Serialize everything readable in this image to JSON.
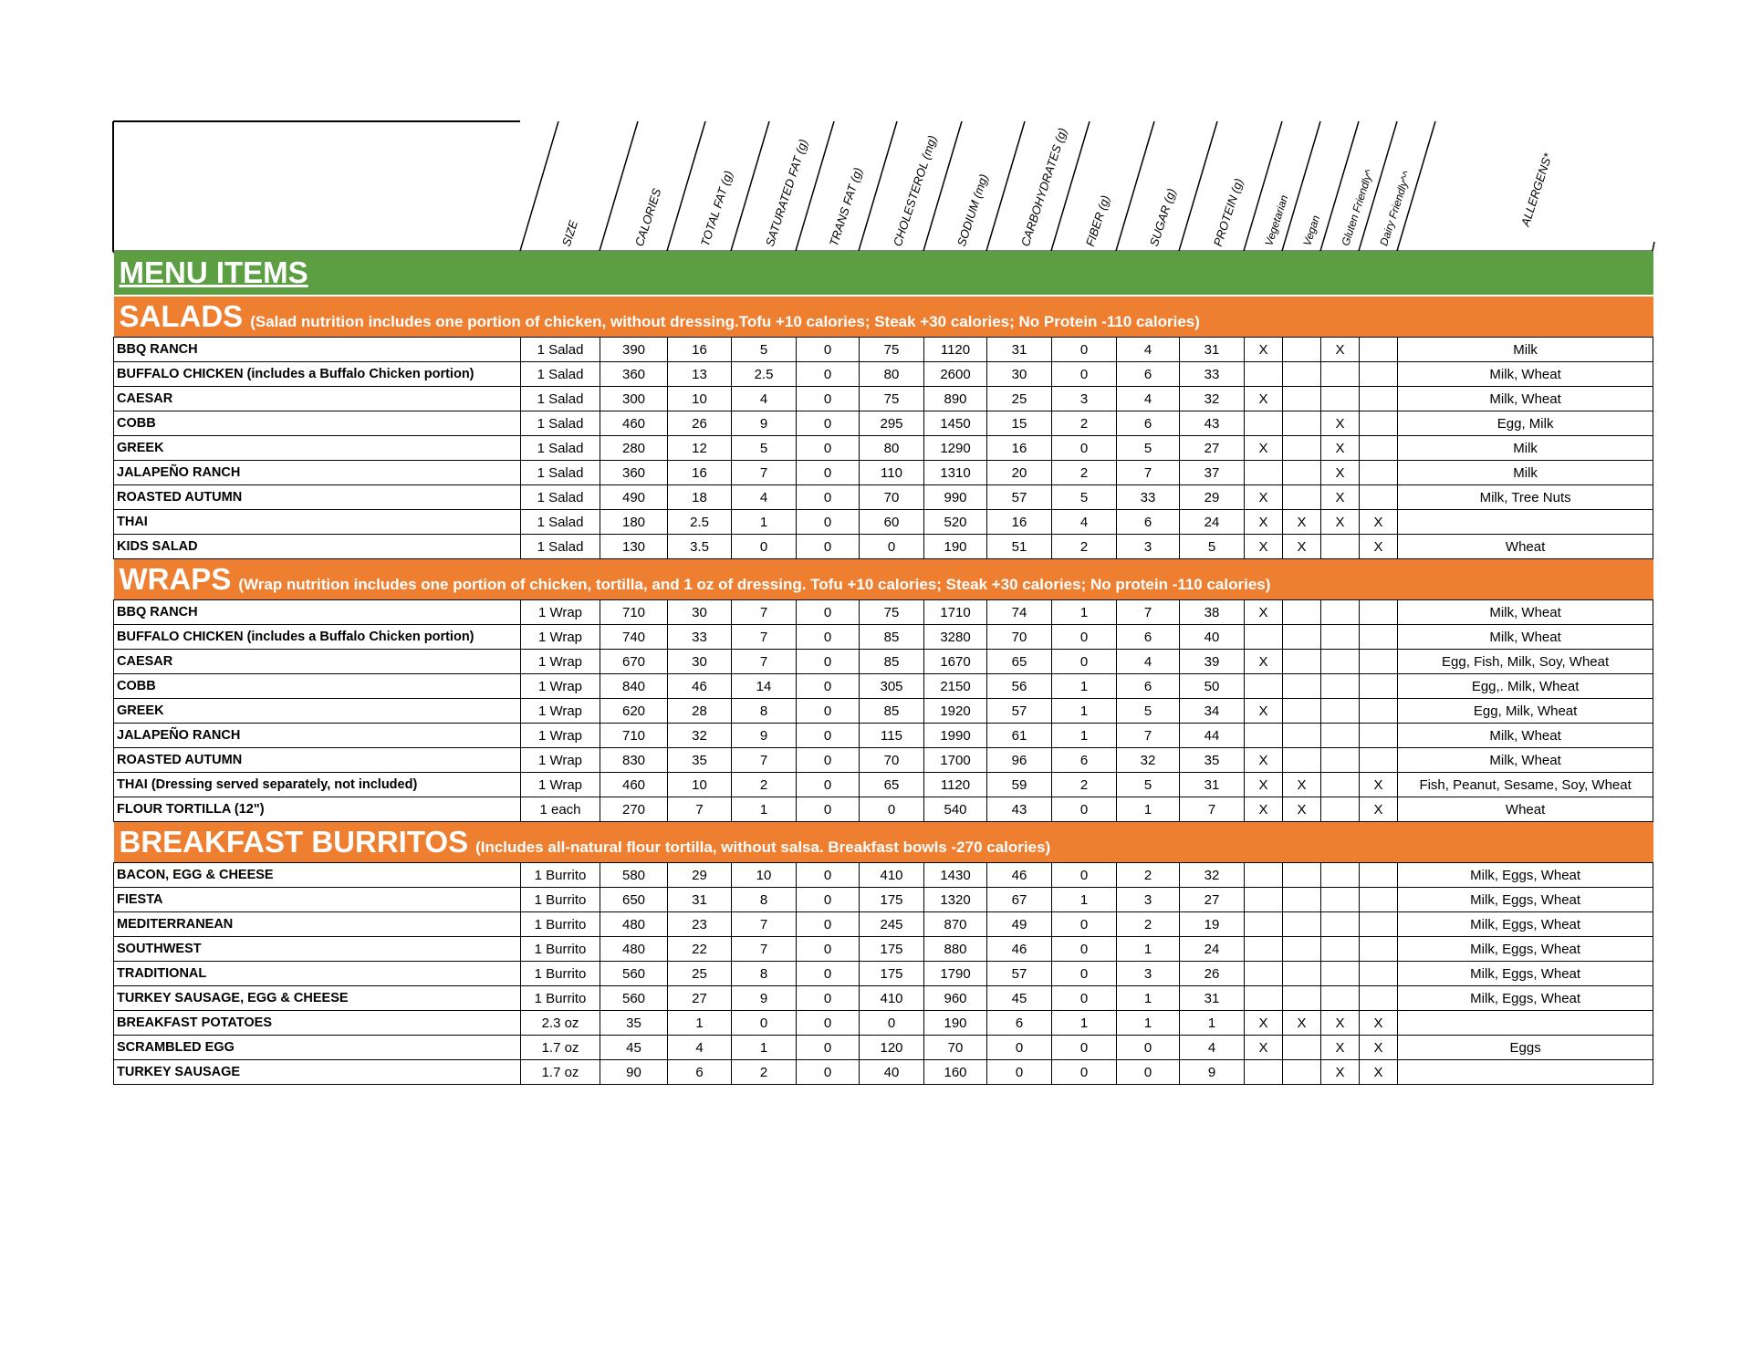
{
  "header": {
    "columns": [
      "SIZE",
      "CALORIES",
      "TOTAL FAT (g)",
      "SATURATED FAT (g)",
      "TRANS FAT (g)",
      "CHOLESTEROL (mg)",
      "SODIUM (mg)",
      "CARBOHYDRATES (g)",
      "FIBER (g)",
      "SUGAR (g)",
      "PROTEIN (g)",
      "Vegetarian",
      "Vegan",
      "Gluten Friendly^",
      "Dairy Friendly^^",
      "ALLERGENS*"
    ]
  },
  "menu_title": "MENU ITEMS",
  "colors": {
    "green": "#5c9e42",
    "orange": "#ee7f31"
  },
  "sections": [
    {
      "title": "SALADS",
      "note": "(Salad nutrition includes one portion of chicken, without dressing.Tofu +10 calories; Steak +30 calories; No Protein -110 calories)",
      "rows": [
        [
          "BBQ RANCH",
          "1 Salad",
          "390",
          "16",
          "5",
          "0",
          "75",
          "1120",
          "31",
          "0",
          "4",
          "31",
          "X",
          "",
          "X",
          "",
          "Milk"
        ],
        [
          "BUFFALO CHICKEN (includes a Buffalo Chicken portion)",
          "1 Salad",
          "360",
          "13",
          "2.5",
          "0",
          "80",
          "2600",
          "30",
          "0",
          "6",
          "33",
          "",
          "",
          "",
          "",
          "Milk, Wheat"
        ],
        [
          "CAESAR",
          "1 Salad",
          "300",
          "10",
          "4",
          "0",
          "75",
          "890",
          "25",
          "3",
          "4",
          "32",
          "X",
          "",
          "",
          "",
          "Milk, Wheat"
        ],
        [
          "COBB",
          "1 Salad",
          "460",
          "26",
          "9",
          "0",
          "295",
          "1450",
          "15",
          "2",
          "6",
          "43",
          "",
          "",
          "X",
          "",
          "Egg, Milk"
        ],
        [
          "GREEK",
          "1 Salad",
          "280",
          "12",
          "5",
          "0",
          "80",
          "1290",
          "16",
          "0",
          "5",
          "27",
          "X",
          "",
          "X",
          "",
          "Milk"
        ],
        [
          "JALAPEÑO RANCH",
          "1 Salad",
          "360",
          "16",
          "7",
          "0",
          "110",
          "1310",
          "20",
          "2",
          "7",
          "37",
          "",
          "",
          "X",
          "",
          "Milk"
        ],
        [
          "ROASTED AUTUMN",
          "1 Salad",
          "490",
          "18",
          "4",
          "0",
          "70",
          "990",
          "57",
          "5",
          "33",
          "29",
          "X",
          "",
          "X",
          "",
          "Milk, Tree Nuts"
        ],
        [
          "THAI",
          "1 Salad",
          "180",
          "2.5",
          "1",
          "0",
          "60",
          "520",
          "16",
          "4",
          "6",
          "24",
          "X",
          "X",
          "X",
          "X",
          ""
        ],
        [
          "KIDS SALAD",
          "1 Salad",
          "130",
          "3.5",
          "0",
          "0",
          "0",
          "190",
          "51",
          "2",
          "3",
          "5",
          "X",
          "X",
          "",
          "X",
          "Wheat"
        ]
      ]
    },
    {
      "title": "WRAPS",
      "note": "(Wrap nutrition includes one portion of chicken, tortilla, and 1 oz of dressing. Tofu +10 calories; Steak +30 calories; No protein -110 calories)",
      "rows": [
        [
          "BBQ RANCH",
          "1 Wrap",
          "710",
          "30",
          "7",
          "0",
          "75",
          "1710",
          "74",
          "1",
          "7",
          "38",
          "X",
          "",
          "",
          "",
          "Milk, Wheat"
        ],
        [
          "BUFFALO CHICKEN (includes a Buffalo Chicken portion)",
          "1 Wrap",
          "740",
          "33",
          "7",
          "0",
          "85",
          "3280",
          "70",
          "0",
          "6",
          "40",
          "",
          "",
          "",
          "",
          "Milk, Wheat"
        ],
        [
          "CAESAR",
          "1 Wrap",
          "670",
          "30",
          "7",
          "0",
          "85",
          "1670",
          "65",
          "0",
          "4",
          "39",
          "X",
          "",
          "",
          "",
          "Egg, Fish, Milk, Soy, Wheat"
        ],
        [
          "COBB",
          "1 Wrap",
          "840",
          "46",
          "14",
          "0",
          "305",
          "2150",
          "56",
          "1",
          "6",
          "50",
          "",
          "",
          "",
          "",
          "Egg,. Milk, Wheat"
        ],
        [
          "GREEK",
          "1 Wrap",
          "620",
          "28",
          "8",
          "0",
          "85",
          "1920",
          "57",
          "1",
          "5",
          "34",
          "X",
          "",
          "",
          "",
          "Egg, Milk, Wheat"
        ],
        [
          "JALAPEÑO RANCH",
          "1 Wrap",
          "710",
          "32",
          "9",
          "0",
          "115",
          "1990",
          "61",
          "1",
          "7",
          "44",
          "",
          "",
          "",
          "",
          "Milk, Wheat"
        ],
        [
          "ROASTED AUTUMN",
          "1 Wrap",
          "830",
          "35",
          "7",
          "0",
          "70",
          "1700",
          "96",
          "6",
          "32",
          "35",
          "X",
          "",
          "",
          "",
          "Milk, Wheat"
        ],
        [
          "THAI (Dressing served separately, not included)",
          "1 Wrap",
          "460",
          "10",
          "2",
          "0",
          "65",
          "1120",
          "59",
          "2",
          "5",
          "31",
          "X",
          "X",
          "",
          "X",
          "Fish, Peanut, Sesame, Soy, Wheat"
        ],
        [
          "FLOUR TORTILLA (12\")",
          "1 each",
          "270",
          "7",
          "1",
          "0",
          "0",
          "540",
          "43",
          "0",
          "1",
          "7",
          "X",
          "X",
          "",
          "X",
          "Wheat"
        ]
      ]
    },
    {
      "title": "BREAKFAST BURRITOS",
      "note": "(Includes all-natural flour tortilla, without salsa. Breakfast bowls -270 calories)",
      "rows": [
        [
          "BACON, EGG & CHEESE",
          "1 Burrito",
          "580",
          "29",
          "10",
          "0",
          "410",
          "1430",
          "46",
          "0",
          "2",
          "32",
          "",
          "",
          "",
          "",
          "Milk, Eggs, Wheat"
        ],
        [
          "FIESTA",
          "1 Burrito",
          "650",
          "31",
          "8",
          "0",
          "175",
          "1320",
          "67",
          "1",
          "3",
          "27",
          "",
          "",
          "",
          "",
          "Milk, Eggs, Wheat"
        ],
        [
          "MEDITERRANEAN",
          "1 Burrito",
          "480",
          "23",
          "7",
          "0",
          "245",
          "870",
          "49",
          "0",
          "2",
          "19",
          "",
          "",
          "",
          "",
          "Milk, Eggs, Wheat"
        ],
        [
          "SOUTHWEST",
          "1 Burrito",
          "480",
          "22",
          "7",
          "0",
          "175",
          "880",
          "46",
          "0",
          "1",
          "24",
          "",
          "",
          "",
          "",
          "Milk, Eggs, Wheat"
        ],
        [
          "TRADITIONAL",
          "1 Burrito",
          "560",
          "25",
          "8",
          "0",
          "175",
          "1790",
          "57",
          "0",
          "3",
          "26",
          "",
          "",
          "",
          "",
          "Milk, Eggs, Wheat"
        ],
        [
          "TURKEY SAUSAGE, EGG & CHEESE",
          "1 Burrito",
          "560",
          "27",
          "9",
          "0",
          "410",
          "960",
          "45",
          "0",
          "1",
          "31",
          "",
          "",
          "",
          "",
          "Milk, Eggs, Wheat"
        ],
        [
          "BREAKFAST POTATOES",
          "2.3 oz",
          "35",
          "1",
          "0",
          "0",
          "0",
          "190",
          "6",
          "1",
          "1",
          "1",
          "X",
          "X",
          "X",
          "X",
          ""
        ],
        [
          "SCRAMBLED EGG",
          "1.7 oz",
          "45",
          "4",
          "1",
          "0",
          "120",
          "70",
          "0",
          "0",
          "0",
          "4",
          "X",
          "",
          "X",
          "X",
          "Eggs"
        ],
        [
          "TURKEY SAUSAGE",
          "1.7 oz",
          "90",
          "6",
          "2",
          "0",
          "40",
          "160",
          "0",
          "0",
          "0",
          "9",
          "",
          "",
          "X",
          "X",
          ""
        ]
      ]
    }
  ]
}
